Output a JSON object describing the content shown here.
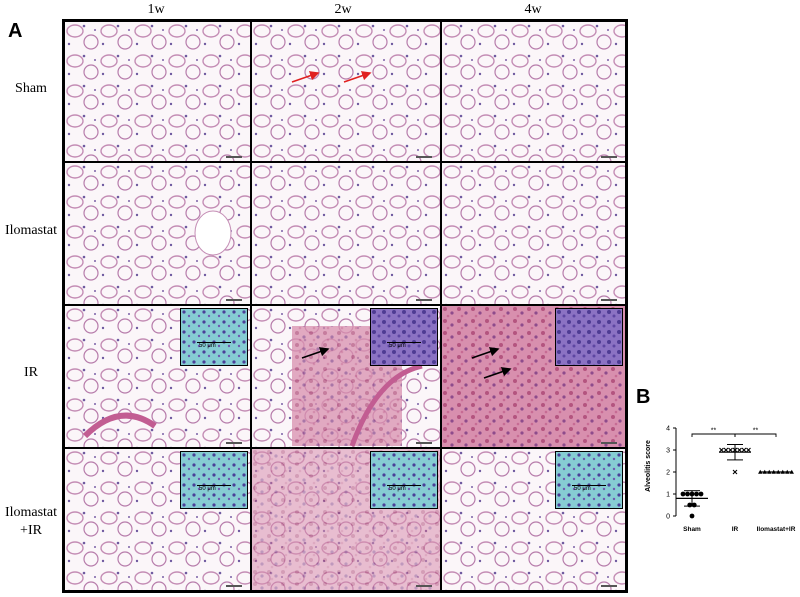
{
  "panel_a": {
    "letter": "A",
    "columns": [
      "1w",
      "2w",
      "4w"
    ],
    "rows": [
      "Sham",
      "Ilomastat",
      "IR",
      "Ilomastat+IR"
    ],
    "inset_scale": "50 μm"
  },
  "panel_b": {
    "letter": "B"
  },
  "chart_data": {
    "type": "scatter",
    "ylabel": "Alveolitis score",
    "ylim": [
      0,
      4
    ],
    "yticks": [
      "0",
      "1",
      "2",
      "3",
      "4"
    ],
    "categories": [
      "Sham",
      "IR",
      "Ilomastat+IR"
    ],
    "series": [
      {
        "category": "Sham",
        "marker": "circle",
        "mean": 0.8,
        "sd_low": 0.45,
        "sd_high": 1.15,
        "points": [
          1,
          1,
          1,
          1,
          1,
          0.5,
          0.5,
          0
        ]
      },
      {
        "category": "IR",
        "marker": "x",
        "mean": 2.9,
        "sd_low": 2.55,
        "sd_high": 3.25,
        "points": [
          3,
          3,
          3,
          3,
          3,
          3,
          3,
          2
        ]
      },
      {
        "category": "Ilomastat+IR",
        "marker": "triangle",
        "mean": 2.0,
        "sd_low": 2.0,
        "sd_high": 2.0,
        "points": [
          2,
          2,
          2,
          2,
          2,
          2,
          2,
          2
        ]
      }
    ],
    "significance": [
      {
        "from": "Sham",
        "to": "IR",
        "label": "**"
      },
      {
        "from": "IR",
        "to": "Ilomastat+IR",
        "label": "**"
      }
    ]
  }
}
